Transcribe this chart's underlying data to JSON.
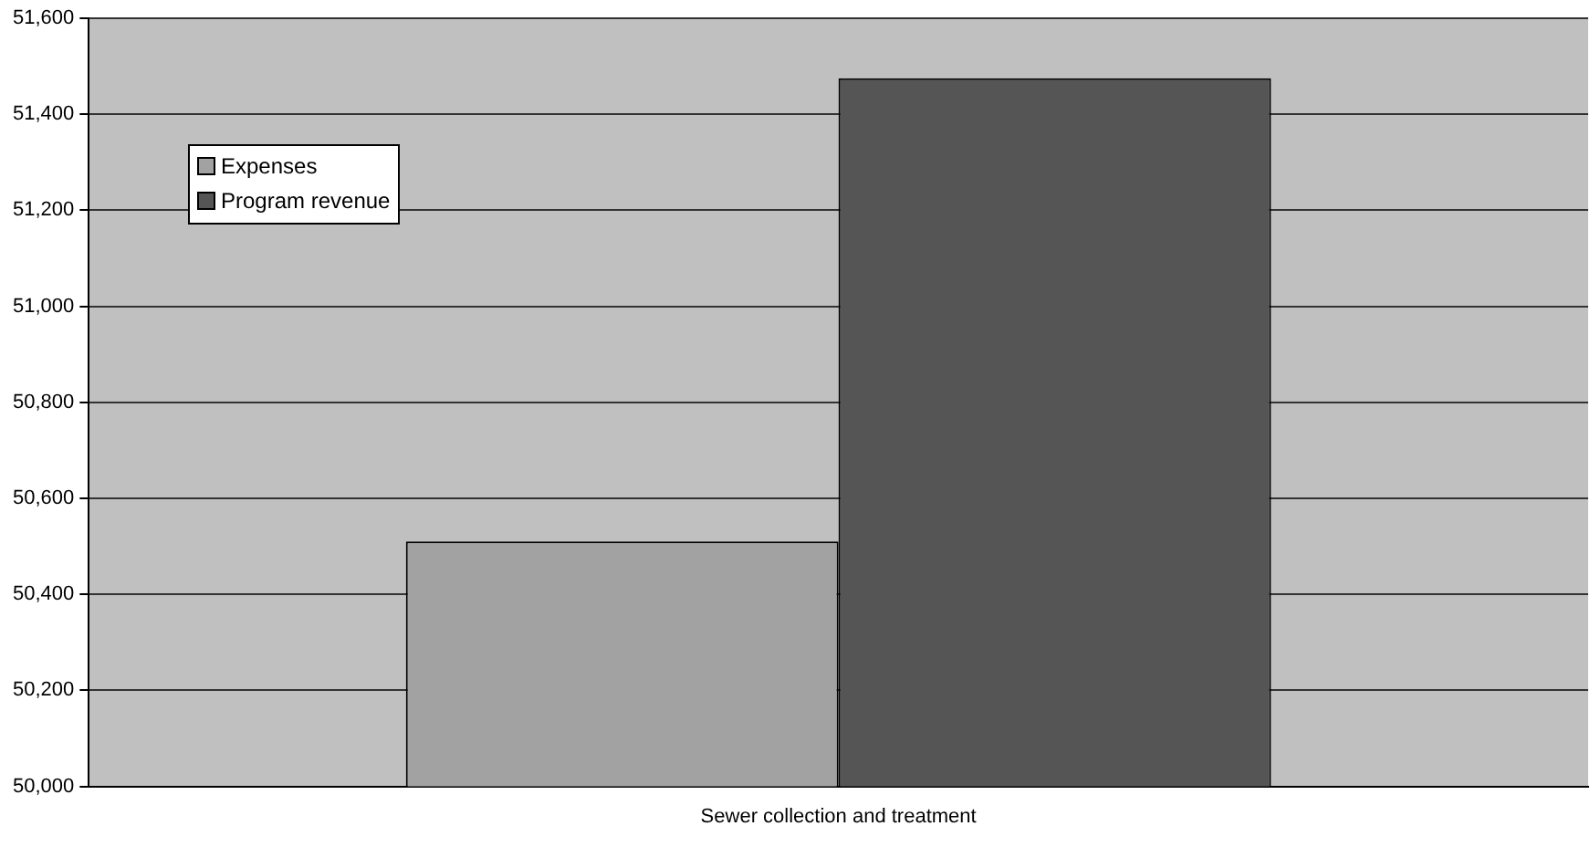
{
  "chart_data": {
    "type": "bar",
    "categories": [
      "Sewer collection and treatment"
    ],
    "series": [
      {
        "name": "Expenses",
        "color": "#a2a2a2",
        "values": [
          50510
        ]
      },
      {
        "name": "Program revenue",
        "color": "#555555",
        "values": [
          51475
        ]
      }
    ],
    "ylim": [
      50000,
      51600
    ],
    "yticks": [
      {
        "value": 50000,
        "label": "50,000"
      },
      {
        "value": 50200,
        "label": "50,200"
      },
      {
        "value": 50400,
        "label": "50,400"
      },
      {
        "value": 50600,
        "label": "50,600"
      },
      {
        "value": 50800,
        "label": "50,800"
      },
      {
        "value": 51000,
        "label": "51,000"
      },
      {
        "value": 51200,
        "label": "51,200"
      },
      {
        "value": 51400,
        "label": "51,400"
      },
      {
        "value": 51600,
        "label": "51,600"
      }
    ],
    "grid": "y",
    "legend": "top left"
  }
}
